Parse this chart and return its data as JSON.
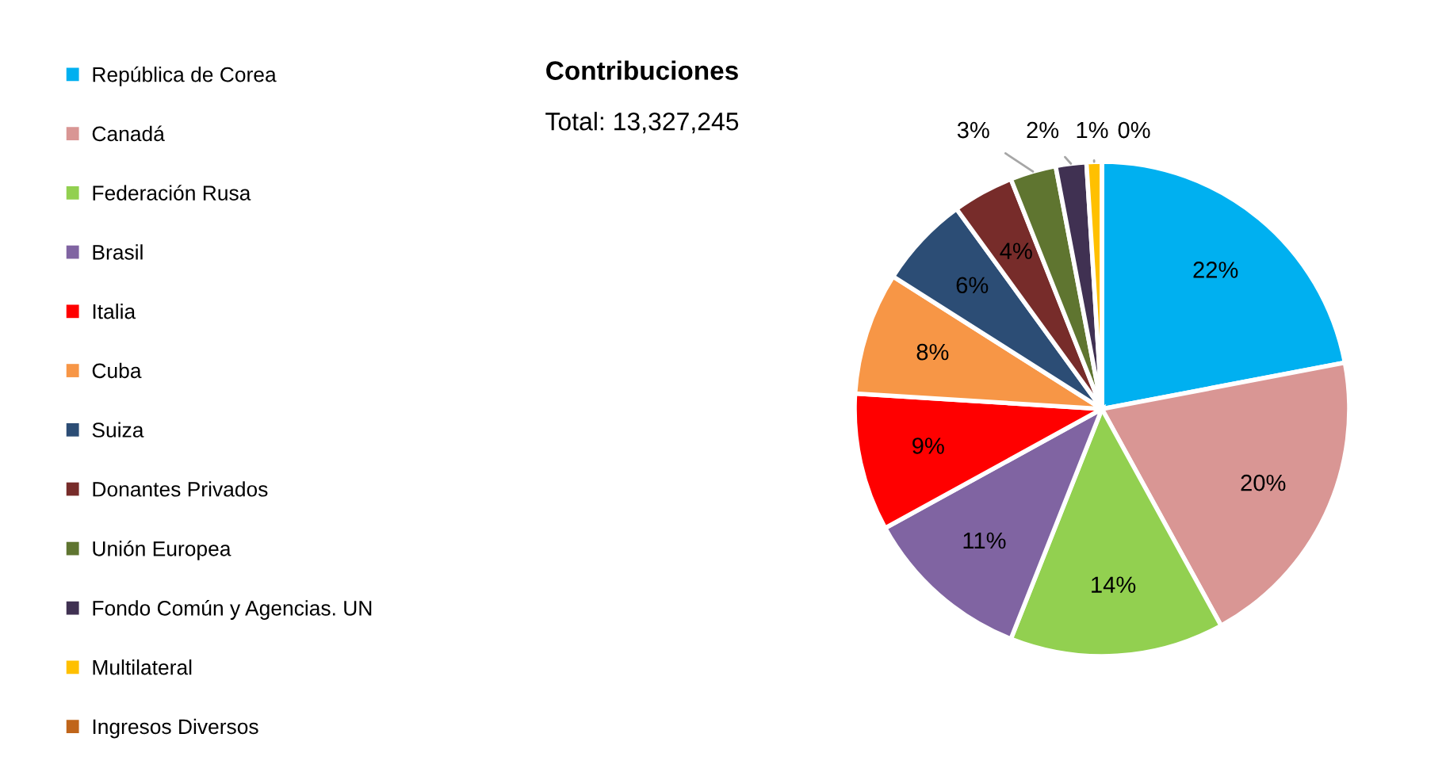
{
  "chart_data": {
    "type": "pie",
    "title": "Contribuciones",
    "subtitle": "Total: 13,327,245",
    "categories": [
      "República de Corea",
      "Canadá",
      "Federación Rusa",
      "Brasil",
      "Italia",
      "Cuba",
      "Suiza",
      "Donantes Privados",
      "Unión Europea",
      "Fondo Común y Agencias. UN",
      "Multilateral",
      "Ingresos Diversos"
    ],
    "values": [
      22,
      20,
      14,
      11,
      9,
      8,
      6,
      4,
      3,
      2,
      1,
      0
    ],
    "colors": [
      "#00b0f0",
      "#d99694",
      "#92d050",
      "#8064a2",
      "#ff0000",
      "#f79646",
      "#2c4d75",
      "#772c2a",
      "#5f7530",
      "#403152",
      "#ffc000",
      "#c0651a"
    ],
    "value_labels": [
      "22%",
      "20%",
      "14%",
      "11%",
      "9%",
      "8%",
      "6%",
      "4%",
      "3%",
      "2%",
      "1%",
      "0%"
    ],
    "legend": "left"
  }
}
